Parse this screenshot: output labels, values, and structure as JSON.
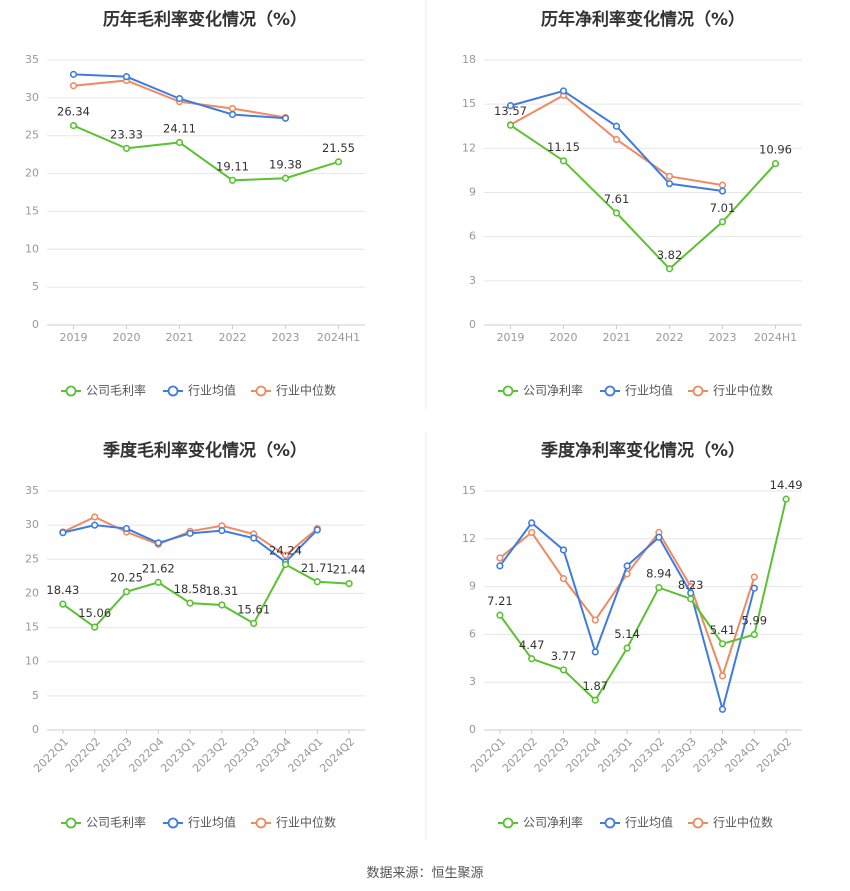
{
  "source_text": "数据来源：恒生聚源",
  "colors": {
    "company": "#5ac232",
    "avg": "#3f7ce0",
    "median": "#f08a62",
    "grid": "#e6e6e6",
    "axis": "#cccccc",
    "tick": "#999999",
    "label": "#333333",
    "title": "#333333"
  },
  "chart_data": [
    {
      "type": "line",
      "title": "历年毛利率变化情况（%）",
      "categories": [
        "2019",
        "2020",
        "2021",
        "2022",
        "2023",
        "2024H1"
      ],
      "ylim": [
        0,
        35
      ],
      "yticks": [
        0,
        5,
        10,
        15,
        20,
        25,
        30,
        35
      ],
      "grid": true,
      "legend": "bottom",
      "series": [
        {
          "name": "公司毛利率",
          "key": "company",
          "values": [
            26.34,
            23.33,
            24.11,
            19.11,
            19.38,
            21.55
          ],
          "labels": [
            "26.34",
            "23.33",
            "24.11",
            "19.11",
            "19.38",
            "21.55"
          ]
        },
        {
          "name": "行业均值",
          "key": "avg",
          "values": [
            33.1,
            32.8,
            29.9,
            27.8,
            27.3,
            null
          ]
        },
        {
          "name": "行业中位数",
          "key": "median",
          "values": [
            31.6,
            32.3,
            29.5,
            28.6,
            27.4,
            null
          ]
        }
      ]
    },
    {
      "type": "line",
      "title": "历年净利率变化情况（%）",
      "categories": [
        "2019",
        "2020",
        "2021",
        "2022",
        "2023",
        "2024H1"
      ],
      "ylim": [
        0,
        18
      ],
      "yticks": [
        0,
        3,
        6,
        9,
        12,
        15,
        18
      ],
      "grid": true,
      "legend": "bottom",
      "series": [
        {
          "name": "公司净利率",
          "key": "company",
          "values": [
            13.57,
            11.15,
            7.61,
            3.82,
            7.01,
            10.96
          ],
          "labels": [
            "13.57",
            "11.15",
            "7.61",
            "3.82",
            "7.01",
            "10.96"
          ]
        },
        {
          "name": "行业均值",
          "key": "avg",
          "values": [
            14.9,
            15.9,
            13.5,
            9.6,
            9.1,
            null
          ]
        },
        {
          "name": "行业中位数",
          "key": "median",
          "values": [
            13.6,
            15.6,
            12.6,
            10.1,
            9.5,
            null
          ]
        }
      ]
    },
    {
      "type": "line",
      "title": "季度毛利率变化情况（%）",
      "categories": [
        "2022Q1",
        "2022Q2",
        "2022Q3",
        "2022Q4",
        "2023Q1",
        "2023Q2",
        "2023Q3",
        "2023Q4",
        "2024Q1",
        "2024Q2"
      ],
      "ylim": [
        0,
        35
      ],
      "yticks": [
        0,
        5,
        10,
        15,
        20,
        25,
        30,
        35
      ],
      "grid": true,
      "legend": "bottom",
      "series": [
        {
          "name": "公司毛利率",
          "key": "company",
          "values": [
            18.43,
            15.06,
            20.25,
            21.62,
            18.58,
            18.31,
            15.61,
            24.24,
            21.71,
            21.44
          ],
          "labels": [
            "18.43",
            "15.06",
            "20.25",
            "21.62",
            "18.58",
            "18.31",
            "15.61",
            "24.24",
            "21.71",
            "21.44"
          ]
        },
        {
          "name": "行业均值",
          "key": "avg",
          "values": [
            28.9,
            30.0,
            29.5,
            27.4,
            28.8,
            29.2,
            28.1,
            24.6,
            29.3,
            null
          ]
        },
        {
          "name": "行业中位数",
          "key": "median",
          "values": [
            29.0,
            31.2,
            29.0,
            27.2,
            29.1,
            29.9,
            28.7,
            25.6,
            29.5,
            null
          ]
        }
      ]
    },
    {
      "type": "line",
      "title": "季度净利率变化情况（%）",
      "categories": [
        "2022Q1",
        "2022Q2",
        "2022Q3",
        "2022Q4",
        "2023Q1",
        "2023Q2",
        "2023Q3",
        "2023Q4",
        "2024Q1",
        "2024Q2"
      ],
      "ylim": [
        0,
        15
      ],
      "yticks": [
        0,
        3,
        6,
        9,
        12,
        15
      ],
      "grid": true,
      "legend": "bottom",
      "series": [
        {
          "name": "公司净利率",
          "key": "company",
          "values": [
            7.21,
            4.47,
            3.77,
            1.87,
            5.14,
            8.94,
            8.23,
            5.41,
            5.99,
            14.49
          ],
          "labels": [
            "7.21",
            "4.47",
            "3.77",
            "1.87",
            "5.14",
            "8.94",
            "8.23",
            "5.41",
            "5.99",
            "14.49"
          ]
        },
        {
          "name": "行业均值",
          "key": "avg",
          "values": [
            10.3,
            13.0,
            11.3,
            4.9,
            10.3,
            12.1,
            8.6,
            1.3,
            8.9,
            null
          ]
        },
        {
          "name": "行业中位数",
          "key": "median",
          "values": [
            10.8,
            12.4,
            9.5,
            6.9,
            9.8,
            12.4,
            9.0,
            3.4,
            9.6,
            null
          ]
        }
      ]
    }
  ]
}
